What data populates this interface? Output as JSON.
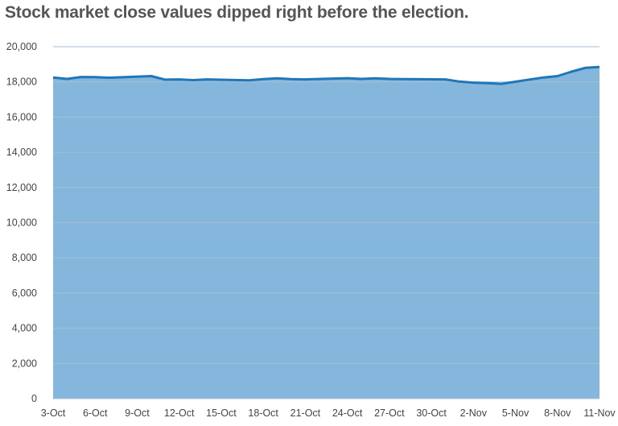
{
  "chart_data": {
    "type": "area",
    "title": "Stock market close values dipped right before the election.",
    "xlabel": "",
    "ylabel": "",
    "ylim": [
      0,
      20000
    ],
    "y_ticks": [
      0,
      2000,
      4000,
      6000,
      8000,
      10000,
      12000,
      14000,
      16000,
      18000,
      20000
    ],
    "y_tick_labels": [
      "0",
      "2,000",
      "4,000",
      "6,000",
      "8,000",
      "10,000",
      "12,000",
      "14,000",
      "16,000",
      "18,000",
      "20,000"
    ],
    "x_tick_labels": [
      "3-Oct",
      "6-Oct",
      "9-Oct",
      "12-Oct",
      "15-Oct",
      "18-Oct",
      "21-Oct",
      "24-Oct",
      "27-Oct",
      "30-Oct",
      "2-Nov",
      "5-Nov",
      "8-Nov",
      "11-Nov"
    ],
    "grid": true,
    "x": [
      "3-Oct",
      "4-Oct",
      "5-Oct",
      "6-Oct",
      "7-Oct",
      "10-Oct",
      "11-Oct",
      "12-Oct",
      "13-Oct",
      "14-Oct",
      "17-Oct",
      "18-Oct",
      "19-Oct",
      "20-Oct",
      "21-Oct",
      "24-Oct",
      "25-Oct",
      "26-Oct",
      "27-Oct",
      "28-Oct",
      "31-Oct",
      "1-Nov",
      "2-Nov",
      "3-Nov",
      "4-Nov",
      "7-Nov",
      "8-Nov",
      "9-Nov",
      "10-Nov",
      "11-Nov"
    ],
    "values": [
      18250,
      18170,
      18280,
      18270,
      18240,
      18330,
      18130,
      18140,
      18100,
      18140,
      18090,
      18160,
      18200,
      18160,
      18140,
      18210,
      18170,
      18200,
      18170,
      18160,
      18140,
      18020,
      17960,
      17930,
      17890,
      18250,
      18330,
      18580,
      18800,
      18850
    ],
    "colors": {
      "fill": "#85b7dc",
      "line": "#1f77b8",
      "grid": "#a4bfd6"
    }
  }
}
